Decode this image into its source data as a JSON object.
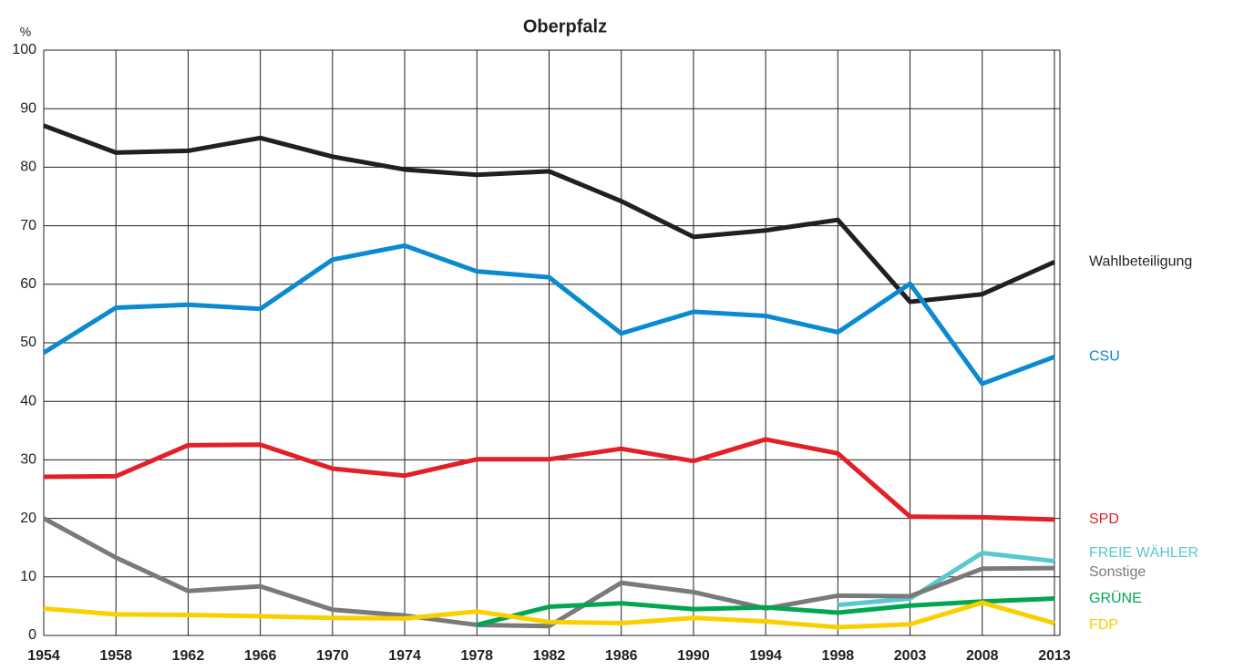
{
  "chart_data": {
    "type": "line",
    "title": "Oberpfalz",
    "y_label": "%",
    "categories": [
      "1954",
      "1958",
      "1962",
      "1966",
      "1970",
      "1974",
      "1978",
      "1982",
      "1986",
      "1990",
      "1994",
      "1998",
      "2003",
      "2008",
      "2013"
    ],
    "ylim": [
      0,
      100
    ],
    "yticks": [
      0,
      10,
      20,
      30,
      40,
      50,
      60,
      70,
      80,
      90,
      100
    ],
    "grid": true,
    "series": [
      {
        "name": "Wahlbeteiligung",
        "color": "#231f20",
        "values": [
          87.1,
          82.5,
          82.8,
          85.0,
          81.8,
          79.6,
          78.7,
          79.3,
          74.2,
          68.1,
          69.2,
          71.0,
          57.0,
          58.3,
          63.8
        ]
      },
      {
        "name": "CSU",
        "color": "#0a8ad0",
        "values": [
          48.3,
          56.0,
          56.5,
          55.8,
          64.2,
          66.6,
          62.2,
          61.2,
          51.6,
          55.3,
          54.6,
          51.8,
          60.1,
          43.0,
          47.6
        ]
      },
      {
        "name": "SPD",
        "color": "#e3202a",
        "values": [
          27.1,
          27.2,
          32.5,
          32.6,
          28.5,
          27.3,
          30.1,
          30.1,
          31.9,
          29.8,
          33.5,
          31.1,
          20.3,
          20.2,
          19.8
        ]
      },
      {
        "name": "FREIE WÄHLER",
        "color": "#5ac8d0",
        "values": [
          null,
          null,
          null,
          null,
          null,
          null,
          null,
          null,
          null,
          null,
          null,
          5.2,
          6.3,
          14.1,
          12.7
        ]
      },
      {
        "name": "Sonstige",
        "color": "#7a7a7a",
        "values": [
          20.0,
          13.3,
          7.6,
          8.4,
          4.4,
          3.4,
          1.8,
          1.6,
          9.0,
          7.4,
          4.6,
          6.8,
          6.7,
          11.4,
          11.5
        ]
      },
      {
        "name": "GRÜNE",
        "color": "#00a650",
        "values": [
          null,
          null,
          null,
          null,
          null,
          null,
          1.8,
          4.9,
          5.5,
          4.5,
          4.8,
          3.9,
          5.1,
          5.8,
          6.3
        ]
      },
      {
        "name": "FDP",
        "color": "#f8d000",
        "values": [
          4.6,
          3.6,
          3.5,
          3.3,
          3.0,
          2.9,
          4.1,
          2.3,
          2.1,
          3.0,
          2.4,
          1.4,
          1.9,
          5.6,
          2.1
        ]
      }
    ]
  }
}
